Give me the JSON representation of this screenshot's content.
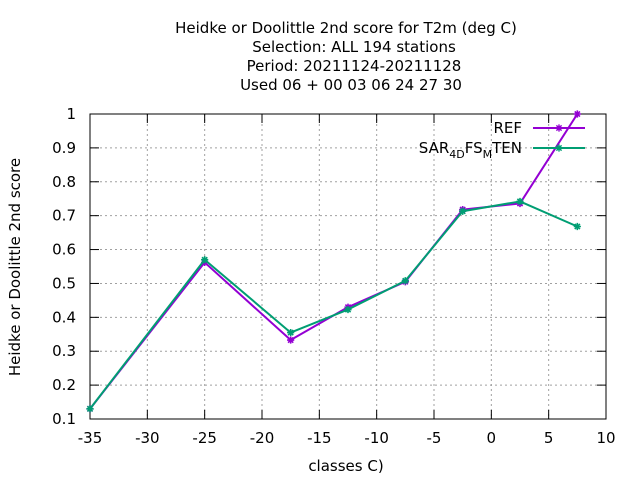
{
  "chart_data": {
    "type": "line",
    "title_lines": [
      "Heidke or Doolittle 2nd score  for T2m (deg C)",
      "Selection: ALL    194 stations",
      "Period: 20211124-20211128",
      "Used  06 + 00 03 06 24 27 30"
    ],
    "xlabel": "classes C)",
    "ylabel": "Heidke or Doolittle 2nd score",
    "xlim": [
      -35,
      10
    ],
    "ylim": [
      0.1,
      1.0
    ],
    "xticks": [
      -35,
      -30,
      -25,
      -20,
      -15,
      -10,
      -5,
      0,
      5,
      10
    ],
    "yticks": [
      0.1,
      0.2,
      0.3,
      0.4,
      0.5,
      0.6,
      0.7,
      0.8,
      0.9,
      1.0
    ],
    "xtick_labels": [
      "-35",
      "-30",
      "-25",
      "-20",
      "-15",
      "-10",
      "-5",
      "0",
      "5",
      "10"
    ],
    "ytick_labels": [
      "0.1",
      "0.2",
      "0.3",
      "0.4",
      "0.5",
      "0.6",
      "0.7",
      "0.8",
      "0.9",
      "1"
    ],
    "grid": true,
    "legend_position": "top-right",
    "series": [
      {
        "name": "REF",
        "color": "#9400d3",
        "x": [
          -35,
          -25,
          -17.5,
          -12.5,
          -7.5,
          -2.5,
          2.5,
          7.5
        ],
        "y": [
          0.13,
          0.562,
          0.333,
          0.43,
          0.505,
          0.718,
          0.736,
          1.0
        ]
      },
      {
        "name": "SAR_4DFS_MTEN",
        "legend_parts": [
          "SAR",
          "4D",
          "FS",
          "M",
          "TEN"
        ],
        "color": "#009e73",
        "x": [
          -35,
          -25,
          -17.5,
          -12.5,
          -7.5,
          -2.5,
          2.5,
          7.5
        ],
        "y": [
          0.13,
          0.57,
          0.355,
          0.423,
          0.508,
          0.713,
          0.742,
          0.668
        ]
      }
    ]
  }
}
